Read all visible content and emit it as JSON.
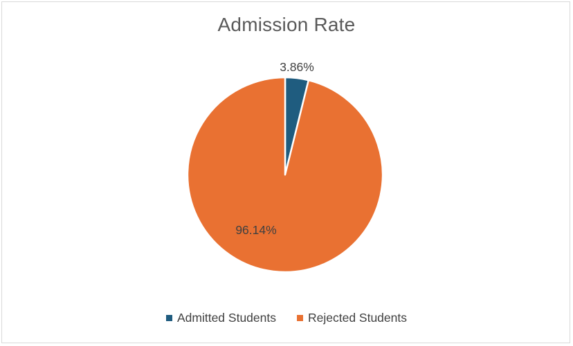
{
  "chart_data": {
    "type": "pie",
    "title": "Admission Rate",
    "categories": [
      "Admitted Students",
      "Rejected Students"
    ],
    "values": [
      3.86,
      96.14
    ],
    "data_labels": [
      "3.86%",
      "96.14%"
    ],
    "colors": [
      "#1f5c7f",
      "#e97132"
    ],
    "legend_position": "bottom"
  }
}
